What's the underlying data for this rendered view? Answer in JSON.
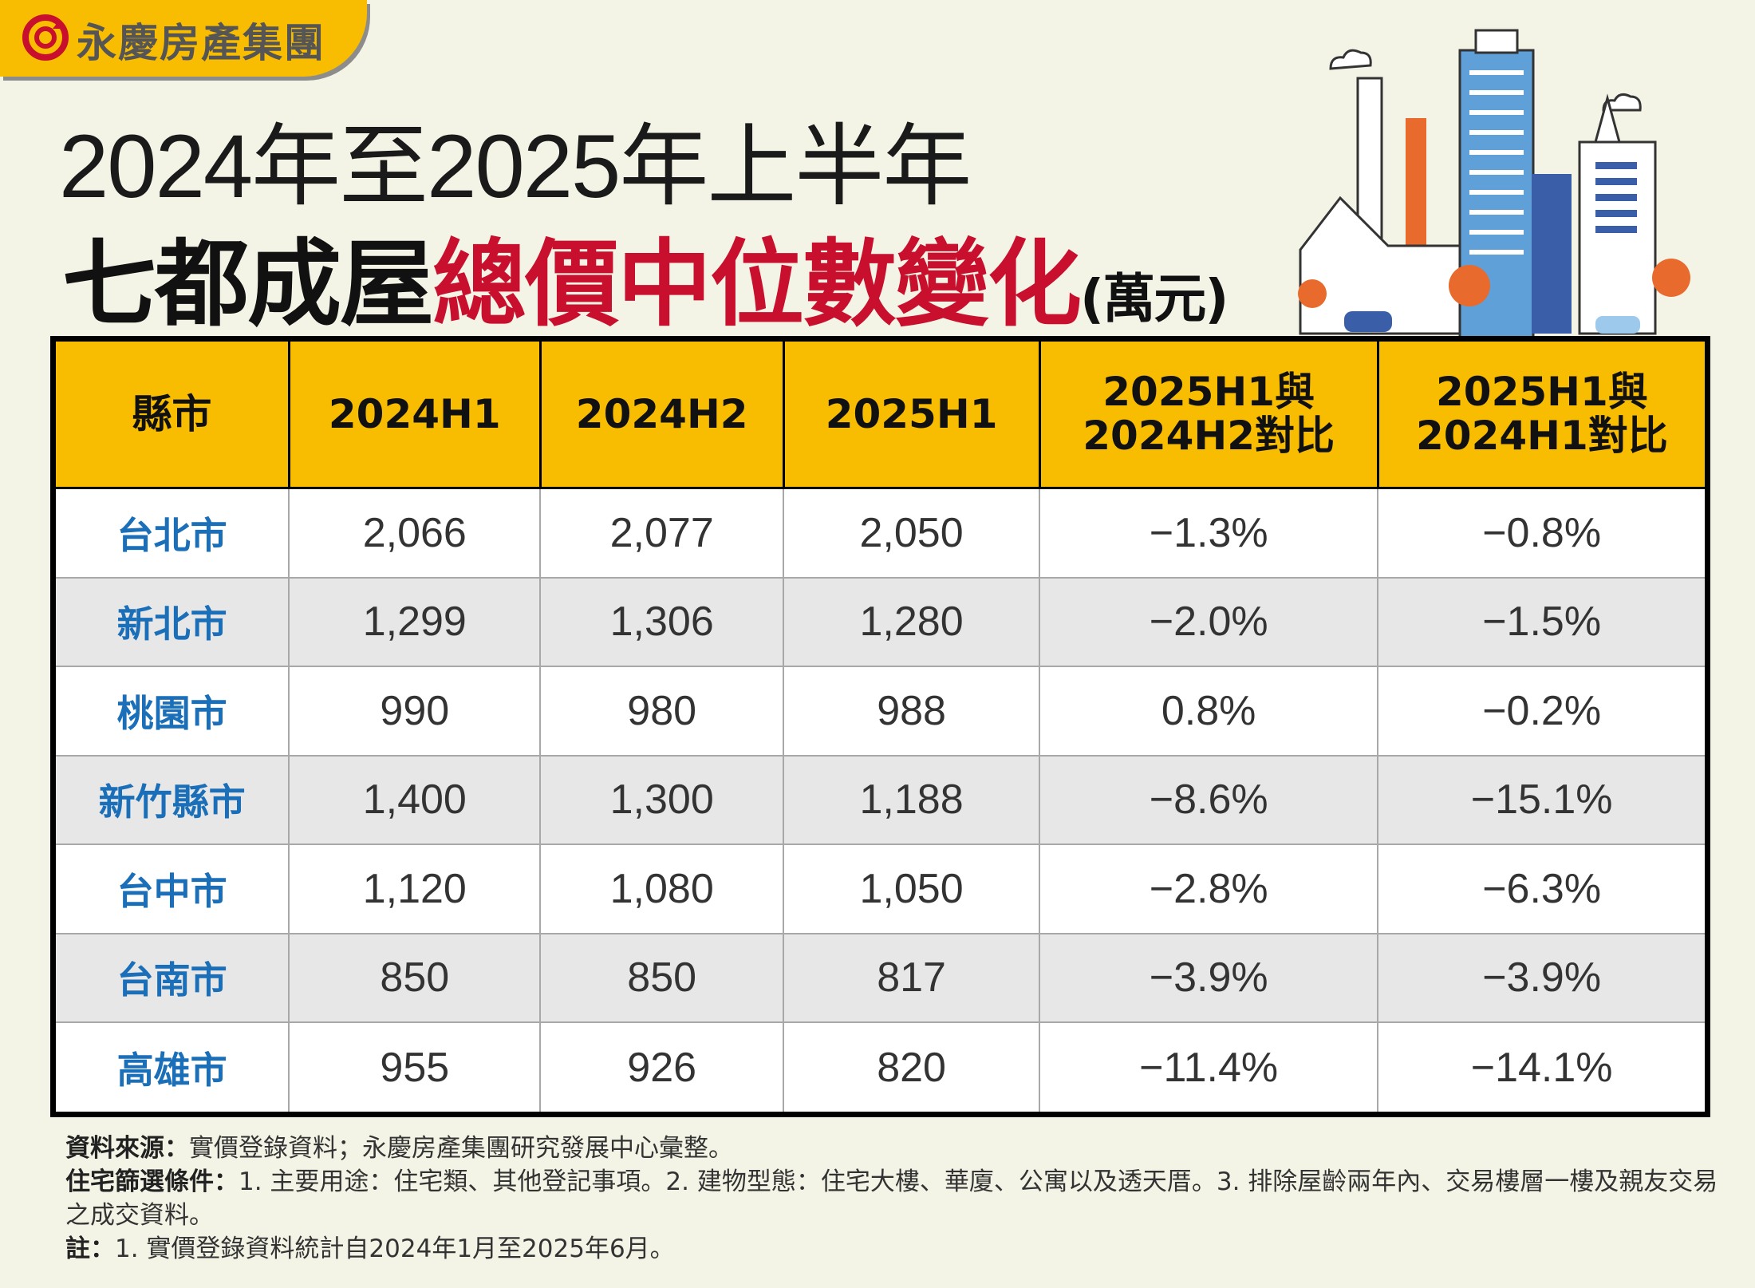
{
  "brand": {
    "name": "永慶房產集團",
    "logo_icon": "circular-arrow-logo",
    "accent": "#c8102e",
    "band_color": "#f8bd00"
  },
  "title": {
    "line1": "2024年至2025年上半年",
    "line2_black": "七都成屋",
    "line2_red": "總價中位數變化",
    "unit": "(萬元)"
  },
  "chart_data": {
    "type": "table",
    "columns": [
      "縣市",
      "2024H1",
      "2024H2",
      "2025H1",
      "2025H1與 2024H2對比",
      "2025H1與 2024H1對比"
    ],
    "rows": [
      [
        "台北市",
        "2,066",
        "2,077",
        "2,050",
        "−1.3%",
        "−0.8%"
      ],
      [
        "新北市",
        "1,299",
        "1,306",
        "1,280",
        "−2.0%",
        "−1.5%"
      ],
      [
        "桃園市",
        "990",
        "980",
        "988",
        "0.8%",
        "−0.2%"
      ],
      [
        "新竹縣市",
        "1,400",
        "1,300",
        "1,188",
        "−8.6%",
        "−15.1%"
      ],
      [
        "台中市",
        "1,120",
        "1,080",
        "1,050",
        "−2.8%",
        "−6.3%"
      ],
      [
        "台南市",
        "850",
        "850",
        "817",
        "−3.9%",
        "−3.9%"
      ],
      [
        "高雄市",
        "955",
        "926",
        "820",
        "−11.4%",
        "−14.1%"
      ]
    ],
    "header_color": "#f8bd00",
    "city_color": "#1a6fb8"
  },
  "notes": {
    "source_label": "資料來源：",
    "source": "實價登錄資料；永慶房產集團研究發展中心彙整。",
    "filter_label": "住宅篩選條件：",
    "filter": "1. 主要用途：住宅類、其他登記事項。2. 建物型態：住宅大樓、華廈、公寓以及透天厝。3. 排除屋齡兩年內、交易樓層一樓及親友交易之成交資料。",
    "note_label": "註：",
    "note": "1. 實價登錄資料統計自2024年1月至2025年6月。"
  }
}
